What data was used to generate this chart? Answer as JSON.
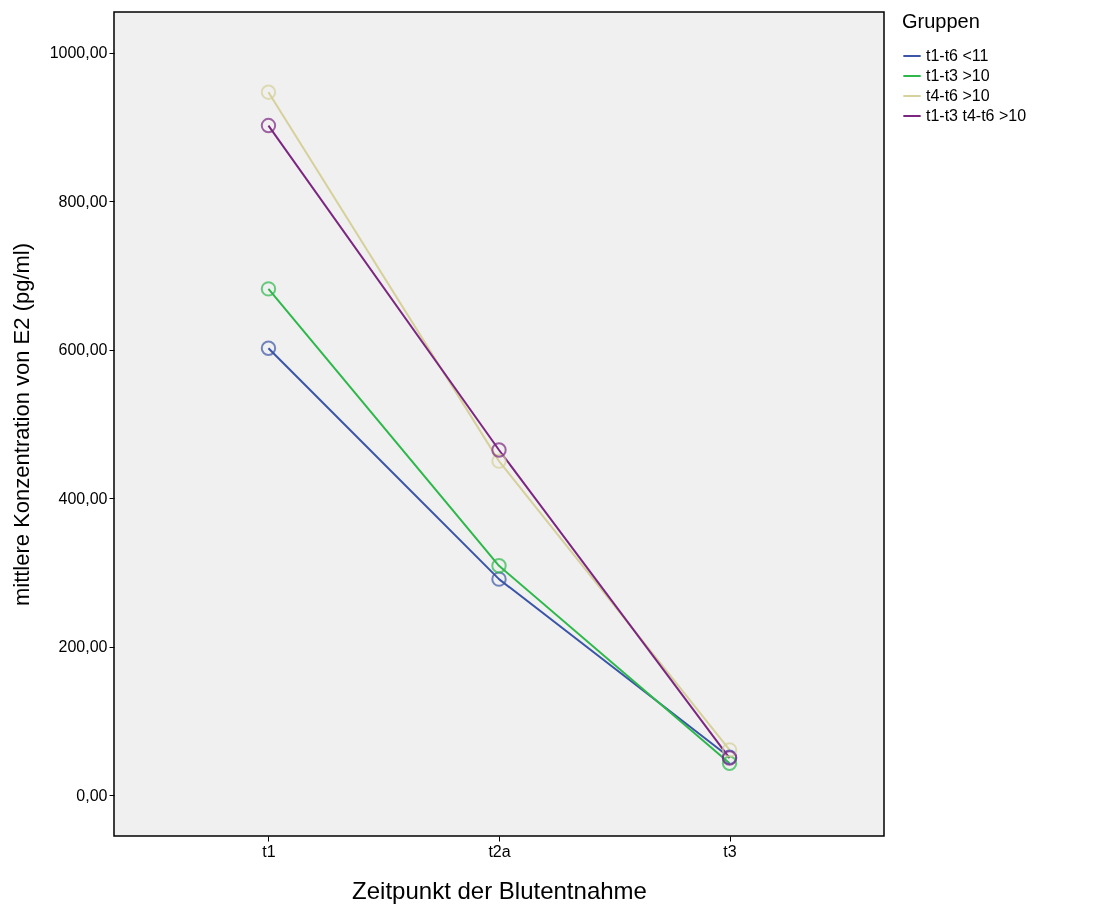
{
  "chart_data": {
    "type": "line",
    "xlabel": "Zeitpunkt der Blutentnahme",
    "ylabel": "mittlere Konzentration von E2 (pg/ml)",
    "legend_title": "Gruppen",
    "legend": "top right",
    "marker": "circle",
    "grid": false,
    "categories": [
      "t1",
      "t2a",
      "t3"
    ],
    "series": [
      {
        "name": "t1-t6 <11",
        "color": "#3a55a8",
        "values": [
          602,
          291,
          51
        ]
      },
      {
        "name": "t1-t3 >10",
        "color": "#2db84a",
        "values": [
          682,
          309,
          43
        ]
      },
      {
        "name": "t4-t6 >10",
        "color": "#d6d09a",
        "values": [
          947,
          450,
          61
        ]
      },
      {
        "name": "t1-t3 t4-t6 >10",
        "color": "#7b2680",
        "values": [
          902,
          465,
          50
        ]
      }
    ],
    "ylim": [
      -55,
      1055
    ],
    "yticks": [
      {
        "value": 0,
        "label": "0,00"
      },
      {
        "value": 200,
        "label": "200,00"
      },
      {
        "value": 400,
        "label": "400,00"
      },
      {
        "value": 600,
        "label": "600,00"
      },
      {
        "value": 800,
        "label": "800,00"
      },
      {
        "value": 1000,
        "label": "1000,00"
      }
    ]
  }
}
